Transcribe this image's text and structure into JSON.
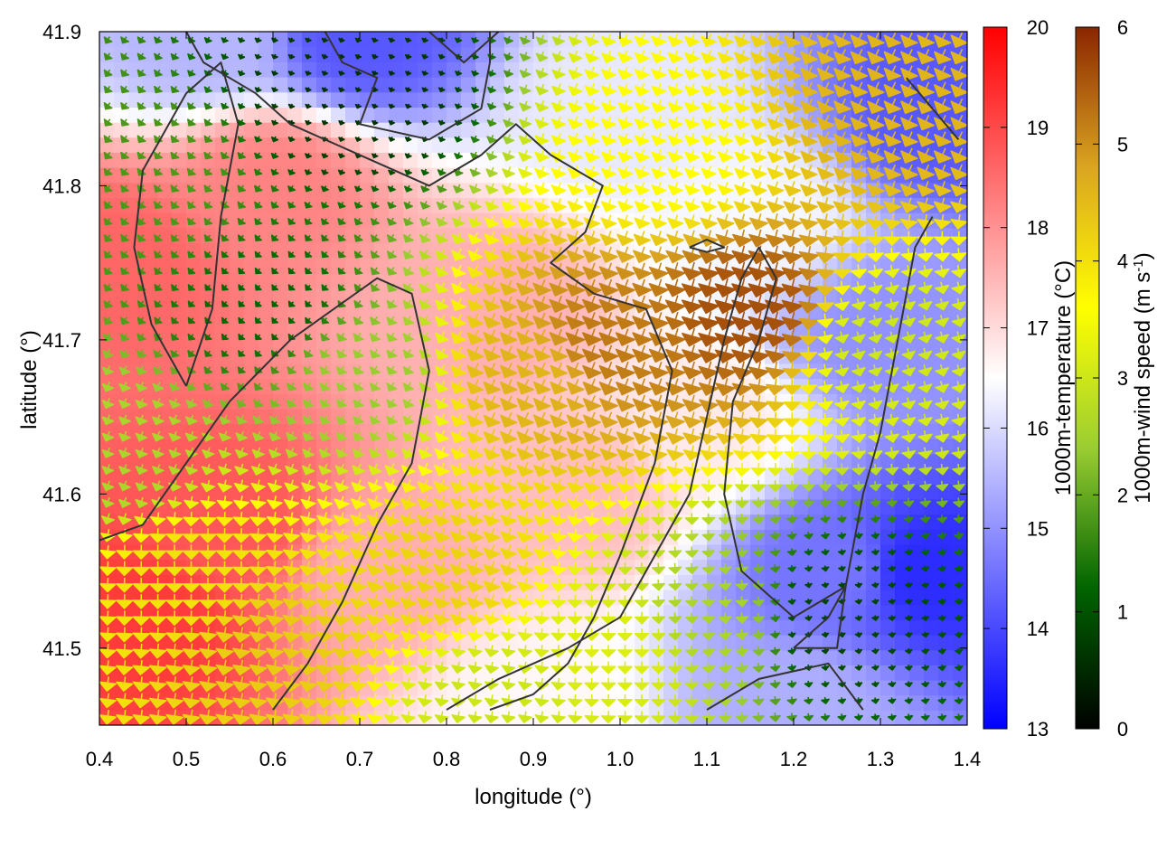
{
  "chart_data": {
    "type": "heatmap",
    "title": "",
    "xlabel": "longitude (°)",
    "ylabel": "latitude (°)",
    "xlim": [
      0.4,
      1.4
    ],
    "ylim": [
      41.45,
      41.9
    ],
    "x_ticks": [
      "0.4",
      "0.5",
      "0.6",
      "0.7",
      "0.8",
      "0.9",
      "1.0",
      "1.1",
      "1.2",
      "1.3",
      "1.4"
    ],
    "y_ticks": [
      "41.5",
      "41.6",
      "41.7",
      "41.8",
      "41.9"
    ],
    "temperature_colorbar": {
      "label": "1000m-temperature (°C)",
      "range": [
        13,
        20
      ],
      "ticks": [
        "13",
        "14",
        "15",
        "16",
        "17",
        "18",
        "19",
        "20"
      ],
      "colors": [
        "#0000ff",
        "#ffffff",
        "#ff0000"
      ]
    },
    "wind_colorbar": {
      "label_main": "1000m-wind speed (m s",
      "label_sup": "-1",
      "label_end": ")",
      "range": [
        0,
        6
      ],
      "ticks": [
        "0",
        "1",
        "2",
        "3",
        "4",
        "5",
        "6"
      ],
      "colors": [
        "#000000",
        "#006400",
        "#9acd32",
        "#ffff00",
        "#daa520",
        "#8b2500"
      ]
    },
    "temperature_field_centers": [
      {
        "lon": 0.45,
        "lat": 41.52,
        "t": 19.2
      },
      {
        "lon": 0.55,
        "lat": 41.58,
        "t": 18.8
      },
      {
        "lon": 0.42,
        "lat": 41.75,
        "t": 18.6
      },
      {
        "lon": 0.6,
        "lat": 41.8,
        "t": 18.2
      },
      {
        "lon": 0.85,
        "lat": 41.72,
        "t": 17.6
      },
      {
        "lon": 0.95,
        "lat": 41.6,
        "t": 17.4
      },
      {
        "lon": 0.72,
        "lat": 41.55,
        "t": 17.6
      },
      {
        "lon": 0.7,
        "lat": 41.9,
        "t": 14.2
      },
      {
        "lon": 0.52,
        "lat": 41.9,
        "t": 15.5
      },
      {
        "lon": 1.0,
        "lat": 41.85,
        "t": 16.2
      },
      {
        "lon": 1.15,
        "lat": 41.78,
        "t": 16.4
      },
      {
        "lon": 1.1,
        "lat": 41.65,
        "t": 16.8
      },
      {
        "lon": 1.25,
        "lat": 41.55,
        "t": 14.6
      },
      {
        "lon": 1.35,
        "lat": 41.55,
        "t": 13.6
      },
      {
        "lon": 1.37,
        "lat": 41.85,
        "t": 14.2
      },
      {
        "lon": 1.3,
        "lat": 41.7,
        "t": 15.0
      },
      {
        "lon": 1.2,
        "lat": 41.46,
        "t": 15.4
      },
      {
        "lon": 0.9,
        "lat": 41.46,
        "t": 16.6
      }
    ],
    "wind_field_centers": [
      {
        "lon": 0.45,
        "lat": 41.8,
        "s": 1.8,
        "dir": 215
      },
      {
        "lon": 0.6,
        "lat": 41.72,
        "s": 1.2,
        "dir": 220
      },
      {
        "lon": 0.7,
        "lat": 41.86,
        "s": 0.6,
        "dir": 200
      },
      {
        "lon": 0.7,
        "lat": 41.68,
        "s": 2.4,
        "dir": 210
      },
      {
        "lon": 0.5,
        "lat": 41.55,
        "s": 4.0,
        "dir": 180
      },
      {
        "lon": 0.6,
        "lat": 41.5,
        "s": 4.3,
        "dir": 190
      },
      {
        "lon": 0.8,
        "lat": 41.55,
        "s": 4.2,
        "dir": 200
      },
      {
        "lon": 0.9,
        "lat": 41.68,
        "s": 4.6,
        "dir": 205
      },
      {
        "lon": 0.98,
        "lat": 41.7,
        "s": 5.2,
        "dir": 200
      },
      {
        "lon": 1.15,
        "lat": 41.72,
        "s": 5.6,
        "dir": 195
      },
      {
        "lon": 1.05,
        "lat": 41.82,
        "s": 3.6,
        "dir": 200
      },
      {
        "lon": 1.3,
        "lat": 41.85,
        "s": 4.6,
        "dir": 205
      },
      {
        "lon": 1.3,
        "lat": 41.7,
        "s": 3.0,
        "dir": 165
      },
      {
        "lon": 1.25,
        "lat": 41.52,
        "s": 0.8,
        "dir": 170
      },
      {
        "lon": 1.1,
        "lat": 41.52,
        "s": 2.6,
        "dir": 175
      },
      {
        "lon": 1.0,
        "lat": 41.5,
        "s": 3.2,
        "dir": 180
      },
      {
        "lon": 0.85,
        "lat": 41.47,
        "s": 3.0,
        "dir": 190
      },
      {
        "lon": 0.42,
        "lat": 41.62,
        "s": 2.6,
        "dir": 200
      }
    ],
    "contours": [
      [
        [
          0.5,
          41.9
        ],
        [
          0.52,
          41.88
        ],
        [
          0.58,
          41.86
        ],
        [
          0.62,
          41.84
        ],
        [
          0.7,
          41.82
        ],
        [
          0.78,
          41.8
        ],
        [
          0.84,
          41.82
        ],
        [
          0.88,
          41.84
        ],
        [
          0.92,
          41.82
        ],
        [
          0.98,
          41.8
        ],
        [
          0.96,
          41.77
        ],
        [
          0.92,
          41.75
        ],
        [
          0.97,
          41.73
        ],
        [
          1.03,
          41.72
        ],
        [
          1.06,
          41.68
        ],
        [
          1.04,
          41.62
        ],
        [
          1.0,
          41.56
        ],
        [
          0.97,
          41.52
        ],
        [
          0.94,
          41.49
        ],
        [
          0.9,
          41.47
        ],
        [
          0.85,
          41.46
        ]
      ],
      [
        [
          0.66,
          41.9
        ],
        [
          0.68,
          41.88
        ],
        [
          0.72,
          41.87
        ],
        [
          0.7,
          41.84
        ],
        [
          0.78,
          41.83
        ],
        [
          0.84,
          41.85
        ],
        [
          0.85,
          41.88
        ],
        [
          0.85,
          41.9
        ]
      ],
      [
        [
          0.78,
          41.9
        ],
        [
          0.82,
          41.88
        ],
        [
          0.86,
          41.9
        ]
      ],
      [
        [
          0.4,
          41.57
        ],
        [
          0.45,
          41.58
        ],
        [
          0.5,
          41.62
        ],
        [
          0.55,
          41.66
        ],
        [
          0.62,
          41.7
        ],
        [
          0.72,
          41.74
        ],
        [
          0.76,
          41.73
        ],
        [
          0.78,
          41.68
        ],
        [
          0.76,
          41.62
        ],
        [
          0.72,
          41.58
        ],
        [
          0.68,
          41.53
        ],
        [
          0.64,
          41.49
        ],
        [
          0.6,
          41.46
        ]
      ],
      [
        [
          0.5,
          41.67
        ],
        [
          0.46,
          41.71
        ],
        [
          0.44,
          41.76
        ],
        [
          0.45,
          41.81
        ],
        [
          0.5,
          41.86
        ],
        [
          0.54,
          41.88
        ],
        [
          0.56,
          41.84
        ],
        [
          0.54,
          41.78
        ],
        [
          0.53,
          41.72
        ],
        [
          0.5,
          41.67
        ]
      ],
      [
        [
          0.8,
          41.46
        ],
        [
          0.86,
          41.48
        ],
        [
          0.94,
          41.5
        ],
        [
          1.0,
          41.52
        ],
        [
          1.04,
          41.56
        ],
        [
          1.08,
          41.6
        ],
        [
          1.1,
          41.65
        ],
        [
          1.12,
          41.7
        ],
        [
          1.14,
          41.74
        ],
        [
          1.16,
          41.76
        ],
        [
          1.18,
          41.74
        ],
        [
          1.16,
          41.7
        ],
        [
          1.13,
          41.66
        ],
        [
          1.12,
          41.6
        ],
        [
          1.14,
          41.55
        ],
        [
          1.2,
          41.52
        ],
        [
          1.26,
          41.54
        ],
        [
          1.28,
          41.6
        ],
        [
          1.3,
          41.64
        ],
        [
          1.32,
          41.7
        ],
        [
          1.34,
          41.76
        ],
        [
          1.36,
          41.78
        ]
      ],
      [
        [
          1.1,
          41.46
        ],
        [
          1.16,
          41.48
        ],
        [
          1.24,
          41.49
        ],
        [
          1.28,
          41.46
        ]
      ],
      [
        [
          1.2,
          41.5
        ],
        [
          1.24,
          41.52
        ],
        [
          1.26,
          41.54
        ],
        [
          1.25,
          41.5
        ],
        [
          1.2,
          41.5
        ]
      ],
      [
        [
          1.33,
          41.87
        ],
        [
          1.36,
          41.85
        ],
        [
          1.39,
          41.83
        ]
      ],
      [
        [
          1.08,
          41.76
        ],
        [
          1.1,
          41.765
        ],
        [
          1.12,
          41.76
        ],
        [
          1.1,
          41.757
        ],
        [
          1.08,
          41.76
        ]
      ]
    ]
  }
}
